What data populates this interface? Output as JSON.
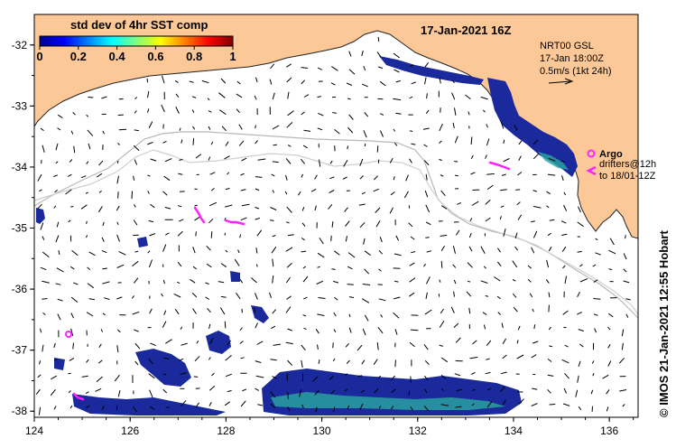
{
  "header": {
    "date_title": "17-Jan-2021 16Z",
    "credit": "© IMOS 21-Jan-2021 12:55 Hobart"
  },
  "colorbar": {
    "label": "std dev of 4hr SST comp",
    "ticks": [
      "0",
      "0.2",
      "0.4",
      "0.6",
      "0.8",
      "1"
    ],
    "range": [
      0,
      1
    ]
  },
  "current_info": {
    "product": "NRT00 GSL",
    "valid": "17-Jan 18:00Z",
    "scale": "0.5m/s (1kt 24h)"
  },
  "legend": {
    "argo": "Argo",
    "drifters_1": "drifters@12h",
    "drifters_2": "to 18/01-12Z"
  },
  "axes": {
    "lon_ticks": [
      "124",
      "126",
      "128",
      "130",
      "132",
      "134",
      "136"
    ],
    "lat_ticks": [
      "-32",
      "-33",
      "-34",
      "-35",
      "-36",
      "-37",
      "-38"
    ],
    "lon_range": [
      124,
      136.6
    ],
    "lat_range": [
      -31.5,
      -38.1
    ]
  },
  "colors": {
    "land": "#fcc897",
    "ocean": "#ffffff",
    "drifter": "#ff22ff",
    "sst_low": "#1020a0"
  }
}
